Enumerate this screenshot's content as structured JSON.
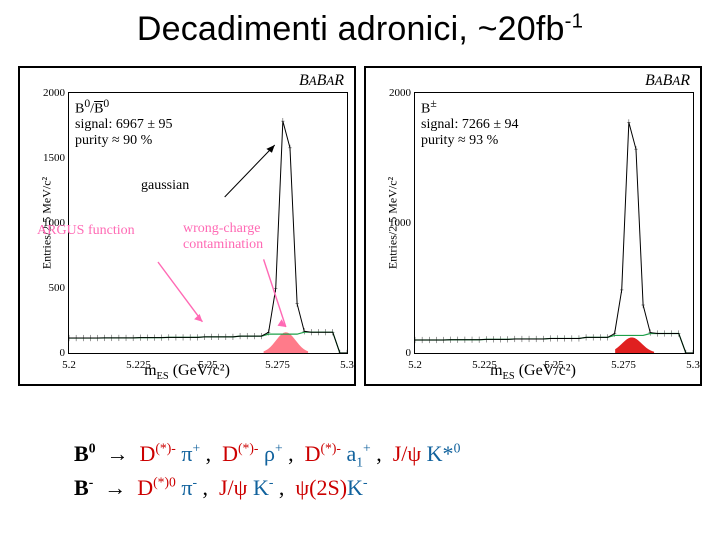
{
  "title_main": "Decadimenti adronici, ~20fb",
  "title_exp": "-1",
  "ylabel": "Entries/2.5 MeV/c²",
  "xlabel_prefix": "m",
  "xlabel_sub": "ES",
  "xlabel_rest": " (GeV/c²)",
  "babar": "BABAR",
  "left": {
    "tag": "B⁰/B̄⁰",
    "sig_line1": "signal: 6967 ± 95",
    "sig_line2": "purity ≈ 90 %",
    "ymax": 2000,
    "yticks": [
      0,
      500,
      1000,
      1500,
      2000
    ],
    "argus": "ARGUS function",
    "gauss": "gaussian",
    "wrong1": "wrong-charge",
    "wrong2": "contamination",
    "curve": {
      "bkg": [
        115,
        116,
        118,
        120,
        124,
        130,
        145,
        160,
        0
      ],
      "peak": [
        0,
        0,
        0,
        0,
        2,
        20,
        260,
        1950,
        260,
        20,
        2,
        0
      ],
      "peak_center": 0.78,
      "peak_width": 0.1,
      "argus_color": "#1fa04a",
      "peak_color": "#000",
      "wrong_fill": "#ff7b8a",
      "wrong_region": [
        0.7,
        0.86,
        0.08
      ]
    }
  },
  "right": {
    "tag": "B±",
    "sig_line1": "signal: 7266 ± 94",
    "sig_line2": "purity ≈ 93 %",
    "ymax": 2000,
    "yticks": [
      0,
      1000,
      2000
    ],
    "curve": {
      "bkg": [
        100,
        102,
        105,
        108,
        112,
        120,
        135,
        150,
        0
      ],
      "peak": [
        0,
        0,
        0,
        0,
        2,
        20,
        280,
        1980,
        280,
        20,
        2,
        0
      ],
      "peak_center": 0.78,
      "peak_width": 0.1,
      "argus_color": "#1fa04a",
      "peak_color": "#000",
      "red_fill": "#e02020",
      "red_region": [
        0.72,
        0.86,
        0.06
      ]
    }
  },
  "xticks": [
    "5.2",
    "5.225",
    "5.25",
    "5.275",
    "5.3"
  ],
  "decay_lines": [
    {
      "head": "B⁰",
      "arrow": " → ",
      "tail": "D(*)- π+ ,  D(*)- ρ+ ,  D(*)- a₁+ ,  J/ψ K*⁰"
    },
    {
      "head": "B-",
      "arrow": " → ",
      "tail": "D(*)0 π- ,  J/ψ K- ,  ψ(2S)K-"
    }
  ],
  "colors": {
    "pink": "#ff69b4",
    "arrow_pink": "#ff69b4"
  }
}
